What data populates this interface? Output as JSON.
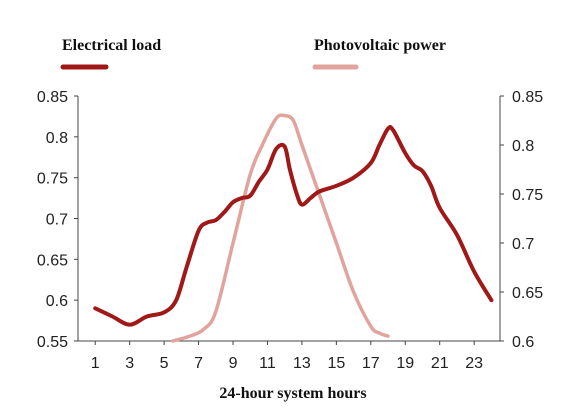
{
  "chart_data": {
    "type": "line",
    "xlabel": "24-hour system hours",
    "x_ticks": [
      "1",
      "3",
      "5",
      "7",
      "9",
      "11",
      "13",
      "15",
      "17",
      "19",
      "21",
      "23"
    ],
    "xlim": [
      0,
      24.5
    ],
    "ylim_left": [
      0.55,
      0.85
    ],
    "left_ticks": [
      "0.85",
      "0.8",
      "0.75",
      "0.7",
      "0.65",
      "0.6",
      "0.55"
    ],
    "left_tick_values": [
      0.85,
      0.8,
      0.75,
      0.7,
      0.65,
      0.6,
      0.55
    ],
    "ylim_right": [
      0.6,
      0.85
    ],
    "right_ticks": [
      "0.85",
      "0.8",
      "0.75",
      "0.7",
      "0.65",
      "0.6"
    ],
    "right_tick_values": [
      0.85,
      0.8,
      0.75,
      0.7,
      0.65,
      0.6
    ],
    "grid": false,
    "legend_position": "top",
    "series": [
      {
        "name": "Electrical load",
        "axis": "left",
        "color": "#a01818",
        "x": [
          1,
          2,
          3,
          4,
          5,
          5.7,
          6.3,
          7,
          7.5,
          8,
          8.5,
          9,
          9.5,
          10,
          10.5,
          11,
          11.5,
          12,
          12.3,
          12.7,
          13,
          13.5,
          14,
          15,
          16,
          17,
          17.5,
          18,
          18.3,
          19,
          19.5,
          20,
          20.5,
          21,
          22,
          23,
          24
        ],
        "y": [
          0.59,
          0.58,
          0.57,
          0.58,
          0.585,
          0.6,
          0.64,
          0.685,
          0.695,
          0.698,
          0.708,
          0.72,
          0.725,
          0.728,
          0.745,
          0.76,
          0.785,
          0.788,
          0.76,
          0.73,
          0.717,
          0.725,
          0.733,
          0.74,
          0.75,
          0.768,
          0.79,
          0.81,
          0.808,
          0.78,
          0.765,
          0.758,
          0.74,
          0.713,
          0.68,
          0.635,
          0.6
        ]
      },
      {
        "name": "Photovoltaic power",
        "axis": "right",
        "color": "#e0a49c",
        "x": [
          5.5,
          6.5,
          7.3,
          8,
          9,
          10,
          10.7,
          11.5,
          12,
          12.5,
          13,
          14,
          15,
          16,
          17,
          17.5,
          18
        ],
        "y": [
          0.6,
          0.605,
          0.612,
          0.63,
          0.7,
          0.77,
          0.8,
          0.827,
          0.83,
          0.825,
          0.8,
          0.75,
          0.7,
          0.65,
          0.615,
          0.608,
          0.605
        ]
      }
    ]
  }
}
